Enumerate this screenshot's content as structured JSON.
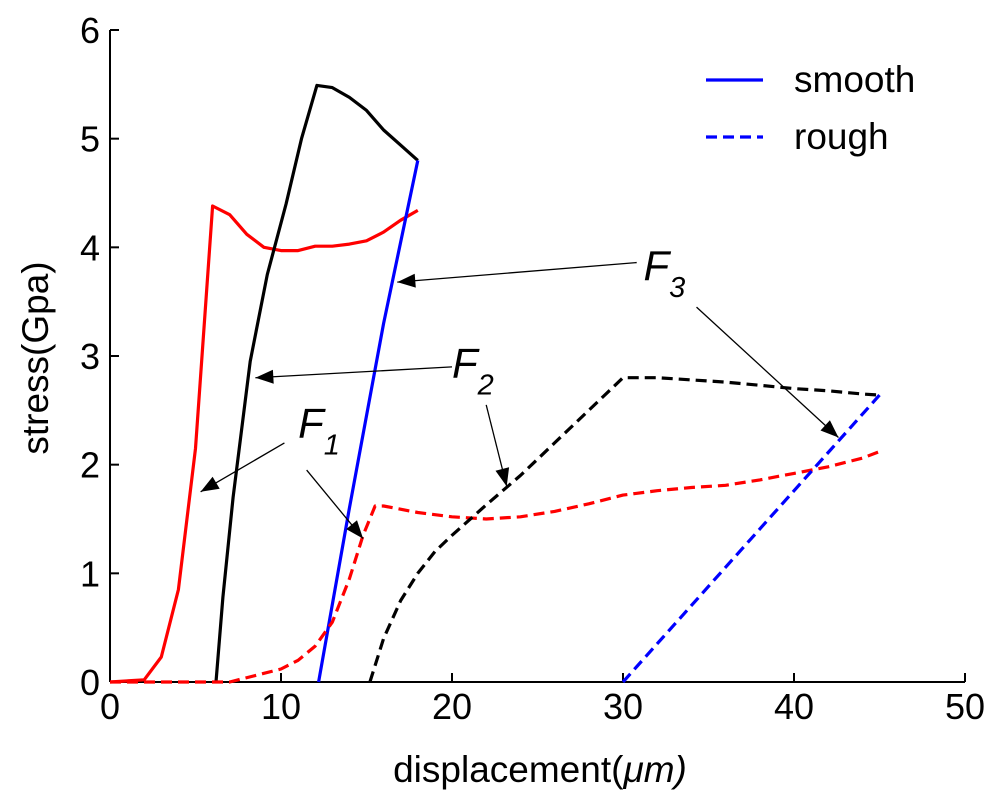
{
  "chart_data": {
    "type": "line",
    "title": "",
    "xlabel": "displacement(",
    "xlabel_unit": "μm)",
    "ylabel": "stress(Gpa)",
    "xlim": [
      0,
      50
    ],
    "ylim": [
      0,
      6
    ],
    "xticks": [
      "0",
      "10",
      "20",
      "30",
      "40",
      "50"
    ],
    "yticks": [
      "0",
      "1",
      "2",
      "3",
      "4",
      "5",
      "6"
    ],
    "grid": false,
    "legend": {
      "placement": "top-right",
      "entries": [
        {
          "label": "smooth",
          "style": "solid",
          "color": "#0000ff"
        },
        {
          "label": " rough",
          "style": "dashed",
          "color": "#0000ff"
        }
      ]
    },
    "series": [
      {
        "color": "#ff0000",
        "style": "solid",
        "x": [
          0,
          2,
          3,
          4,
          5,
          6,
          7,
          8,
          9,
          10,
          11,
          12,
          13,
          14,
          15,
          16,
          17,
          18
        ],
        "y": [
          0,
          0.02,
          0.23,
          0.85,
          2.15,
          4.38,
          4.3,
          4.12,
          4.0,
          3.97,
          3.97,
          4.01,
          4.01,
          4.03,
          4.06,
          4.14,
          4.25,
          4.34
        ]
      },
      {
        "color": "#000000",
        "style": "solid",
        "x": [
          6.2,
          6.6,
          7.2,
          8.2,
          9.2,
          10.3,
          11.2,
          12.1,
          13.0,
          14.0,
          15.0,
          16.0,
          17.0,
          18.0
        ],
        "y": [
          0,
          0.78,
          1.7,
          2.95,
          3.75,
          4.4,
          5.0,
          5.49,
          5.47,
          5.38,
          5.26,
          5.08,
          4.94,
          4.8
        ]
      },
      {
        "color": "#0000ff",
        "style": "solid",
        "x": [
          12.2,
          14.0,
          16.0,
          18.0
        ],
        "y": [
          0,
          1.6,
          3.3,
          4.8
        ]
      },
      {
        "color": "#ff0000",
        "style": "dashed",
        "x": [
          0,
          7,
          10,
          11,
          12,
          13,
          14,
          14.8,
          15.5,
          16,
          18,
          20,
          22,
          24,
          26,
          28,
          30,
          32,
          34,
          36,
          38,
          40,
          42,
          44,
          45
        ],
        "y": [
          0,
          0,
          0.12,
          0.2,
          0.33,
          0.55,
          0.95,
          1.35,
          1.62,
          1.62,
          1.56,
          1.52,
          1.5,
          1.52,
          1.57,
          1.64,
          1.72,
          1.76,
          1.79,
          1.81,
          1.86,
          1.92,
          1.98,
          2.06,
          2.12
        ]
      },
      {
        "color": "#000000",
        "style": "dashed",
        "x": [
          15.2,
          16,
          17,
          18,
          19,
          20,
          22,
          24,
          26,
          28,
          30,
          32,
          34,
          36,
          38,
          40,
          42,
          44,
          45
        ],
        "y": [
          0,
          0.4,
          0.75,
          1.0,
          1.2,
          1.35,
          1.63,
          1.9,
          2.2,
          2.5,
          2.8,
          2.8,
          2.78,
          2.76,
          2.73,
          2.7,
          2.68,
          2.65,
          2.64
        ]
      },
      {
        "color": "#0000ff",
        "style": "dashed",
        "x": [
          30,
          45
        ],
        "y": [
          0,
          2.64
        ]
      }
    ],
    "annotations": [
      {
        "label": "F",
        "sub": "1",
        "text_at": [
          11.0,
          2.25
        ],
        "arrows": [
          {
            "from": [
              10.2,
              2.2
            ],
            "to": [
              5.3,
              1.75
            ]
          },
          {
            "from": [
              11.5,
              1.95
            ],
            "to": [
              14.8,
              1.32
            ]
          }
        ]
      },
      {
        "label": "F",
        "sub": "2",
        "text_at": [
          20.0,
          2.8
        ],
        "arrows": [
          {
            "from": [
              20.0,
              2.9
            ],
            "to": [
              8.5,
              2.8
            ]
          },
          {
            "from": [
              22.0,
              2.55
            ],
            "to": [
              23.2,
              1.8
            ]
          }
        ]
      },
      {
        "label": "F",
        "sub": "3",
        "text_at": [
          31.2,
          3.7
        ],
        "arrows": [
          {
            "from": [
              30.8,
              3.86
            ],
            "to": [
              16.8,
              3.68
            ]
          },
          {
            "from": [
              34.3,
              3.45
            ],
            "to": [
              42.6,
              2.25
            ]
          }
        ]
      }
    ]
  }
}
